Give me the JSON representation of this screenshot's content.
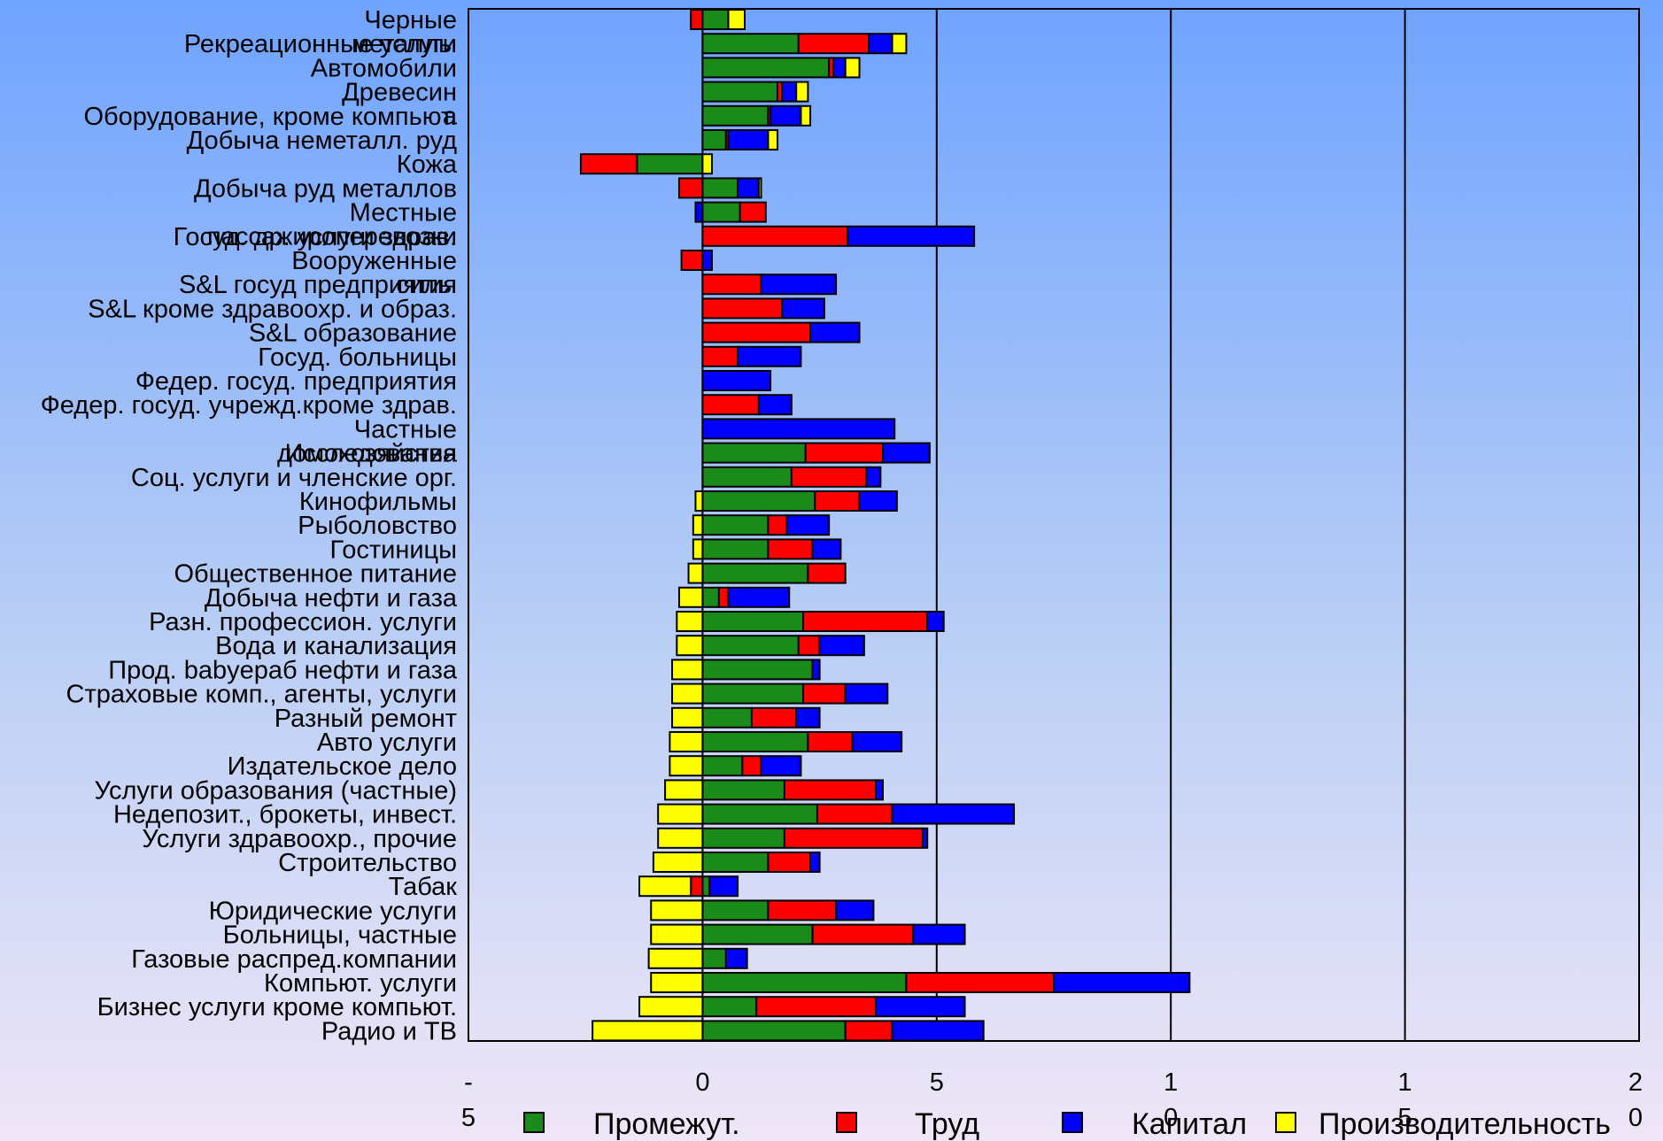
{
  "colors": {
    "intermediate": "#1a8a1a",
    "labor": "#ff0000",
    "capital": "#0000ff",
    "productivity": "#ffff00"
  },
  "chart_data": {
    "type": "bar",
    "orientation": "horizontal",
    "stacked": true,
    "xlim": [
      -5,
      20
    ],
    "x_ticks": [
      {
        "value": -5,
        "line1": "-",
        "line2": "5"
      },
      {
        "value": 0,
        "line1": "0",
        "line2": ""
      },
      {
        "value": 5,
        "line1": "5",
        "line2": ""
      },
      {
        "value": 10,
        "line1": "1",
        "line2": "0"
      },
      {
        "value": 15,
        "line1": "1",
        "line2": "5"
      },
      {
        "value": 20,
        "line1": "2",
        "line2": "0"
      }
    ],
    "grid": "vertical",
    "legend_position": "bottom",
    "series": [
      {
        "key": "intermediate",
        "name": "Промежут.",
        "color": "#1a8a1a"
      },
      {
        "key": "labor",
        "name": "Труд",
        "color": "#ff0000"
      },
      {
        "key": "capital",
        "name": "Капитал",
        "color": "#0000ff"
      },
      {
        "key": "productivity",
        "name": "Производительность",
        "color": "#ffff00"
      }
    ],
    "categories": [
      {
        "label": [
          "Черные",
          "металлы"
        ],
        "intermediate": 0.55,
        "labor": -0.25,
        "capital": 0.0,
        "productivity": 0.35
      },
      {
        "label": [
          "Рекреационные услуги"
        ],
        "intermediate": 2.05,
        "labor": 1.5,
        "capital": 0.5,
        "productivity": 0.3
      },
      {
        "label": [
          "Автомобили"
        ],
        "intermediate": 2.7,
        "labor": 0.1,
        "capital": 0.25,
        "productivity": 0.3
      },
      {
        "label": [
          "Древесин",
          "а"
        ],
        "intermediate": 1.6,
        "labor": 0.1,
        "capital": 0.3,
        "productivity": 0.25
      },
      {
        "label": [
          "Оборудование, кроме компьют."
        ],
        "intermediate": 1.4,
        "labor": 0.05,
        "capital": 0.65,
        "productivity": 0.2
      },
      {
        "label": [
          "Добыча неметалл. руд"
        ],
        "intermediate": 0.5,
        "labor": 0.05,
        "capital": 0.85,
        "productivity": 0.2
      },
      {
        "label": [
          "Кожа"
        ],
        "intermediate": -1.4,
        "labor": -1.2,
        "capital": 0.0,
        "productivity": 0.2
      },
      {
        "label": [
          "Добыча руд металлов"
        ],
        "intermediate": 0.75,
        "labor": -0.5,
        "capital": 0.45,
        "productivity": 0.05
      },
      {
        "label": [
          "Местные",
          "пассажироперевозки"
        ],
        "intermediate": 0.8,
        "labor": 0.55,
        "capital": -0.15,
        "productivity": 0.0
      },
      {
        "label": [
          "Госуд. др. услуги здрав."
        ],
        "intermediate": 0.0,
        "labor": 3.1,
        "capital": 2.7,
        "productivity": 0.0
      },
      {
        "label": [
          "Вооруженные",
          "силы"
        ],
        "intermediate": 0.0,
        "labor": -0.45,
        "capital": 0.2,
        "productivity": 0.0
      },
      {
        "label": [
          "S&L госуд предприятия"
        ],
        "intermediate": 0.0,
        "labor": 1.25,
        "capital": 1.6,
        "productivity": 0.0
      },
      {
        "label": [
          "S&L кроме здравоохр. и образ."
        ],
        "intermediate": 0.0,
        "labor": 1.7,
        "capital": 0.9,
        "productivity": 0.0
      },
      {
        "label": [
          "S&L образование"
        ],
        "intermediate": 0.0,
        "labor": 2.3,
        "capital": 1.05,
        "productivity": 0.0
      },
      {
        "label": [
          "Госуд. больницы"
        ],
        "intermediate": 0.0,
        "labor": 0.75,
        "capital": 1.35,
        "productivity": 0.0
      },
      {
        "label": [
          "Федер. госуд. предприятия"
        ],
        "intermediate": 0.0,
        "labor": 0.0,
        "capital": 1.45,
        "productivity": 0.0
      },
      {
        "label": [
          "Федер. госуд. учрежд.кроме здрав."
        ],
        "intermediate": 0.0,
        "labor": 1.2,
        "capital": 0.7,
        "productivity": 0.0
      },
      {
        "label": [
          "Частные",
          "домохозяйства"
        ],
        "intermediate": 0.0,
        "labor": 0.0,
        "capital": 4.1,
        "productivity": 0.0
      },
      {
        "label": [
          "Исследования"
        ],
        "intermediate": 2.2,
        "labor": 1.65,
        "capital": 1.0,
        "productivity": 0.0
      },
      {
        "label": [
          "Соц. услуги и членские орг."
        ],
        "intermediate": 1.9,
        "labor": 1.6,
        "capital": 0.3,
        "productivity": 0.0
      },
      {
        "label": [
          "Кинофильмы"
        ],
        "intermediate": 2.4,
        "labor": 0.95,
        "capital": 0.8,
        "productivity": -0.15
      },
      {
        "label": [
          "Рыболовство"
        ],
        "intermediate": 1.4,
        "labor": 0.4,
        "capital": 0.9,
        "productivity": -0.2
      },
      {
        "label": [
          "Гостиницы"
        ],
        "intermediate": 1.4,
        "labor": 0.95,
        "capital": 0.6,
        "productivity": -0.2
      },
      {
        "label": [
          "Общественное питание"
        ],
        "intermediate": 2.25,
        "labor": 0.8,
        "capital": 0.0,
        "productivity": -0.3
      },
      {
        "label": [
          "Добыча нефти и газа"
        ],
        "intermediate": 0.35,
        "labor": 0.2,
        "capital": 1.3,
        "productivity": -0.5
      },
      {
        "label": [
          "Разн. профессион. услуги"
        ],
        "intermediate": 2.15,
        "labor": 2.65,
        "capital": 0.35,
        "productivity": -0.55
      },
      {
        "label": [
          "Вода и канализация"
        ],
        "intermediate": 2.05,
        "labor": 0.45,
        "capital": 0.95,
        "productivity": -0.55
      },
      {
        "label": [
          "Прод. babyераб нефти и газа"
        ],
        "intermediate": 2.35,
        "labor": 0.0,
        "capital": 0.15,
        "productivity": -0.65
      },
      {
        "label": [
          "Страховые комп., агенты, услуги"
        ],
        "intermediate": 2.15,
        "labor": 0.9,
        "capital": 0.9,
        "productivity": -0.65
      },
      {
        "label": [
          "Разный ремонт"
        ],
        "intermediate": 1.05,
        "labor": 0.95,
        "capital": 0.5,
        "productivity": -0.65
      },
      {
        "label": [
          "Авто услуги"
        ],
        "intermediate": 2.25,
        "labor": 0.95,
        "capital": 1.05,
        "productivity": -0.7
      },
      {
        "label": [
          "Издательское дело"
        ],
        "intermediate": 0.85,
        "labor": 0.4,
        "capital": 0.85,
        "productivity": -0.7
      },
      {
        "label": [
          "Услуги образования (частные)"
        ],
        "intermediate": 1.75,
        "labor": 1.95,
        "capital": 0.15,
        "productivity": -0.8
      },
      {
        "label": [
          "Недепозит., брокеты, инвест."
        ],
        "intermediate": 2.45,
        "labor": 1.6,
        "capital": 2.6,
        "productivity": -0.95
      },
      {
        "label": [
          "Услуги здравоохр., прочие"
        ],
        "intermediate": 1.75,
        "labor": 2.95,
        "capital": 0.1,
        "productivity": -0.95
      },
      {
        "label": [
          "Строительство"
        ],
        "intermediate": 1.4,
        "labor": 0.9,
        "capital": 0.2,
        "productivity": -1.05
      },
      {
        "label": [
          "Табак"
        ],
        "intermediate": 0.15,
        "labor": -0.25,
        "capital": 0.6,
        "productivity": -1.1
      },
      {
        "label": [
          "Юридические услуги"
        ],
        "intermediate": 1.4,
        "labor": 1.45,
        "capital": 0.8,
        "productivity": -1.1
      },
      {
        "label": [
          "Больницы, частные"
        ],
        "intermediate": 2.35,
        "labor": 2.15,
        "capital": 1.1,
        "productivity": -1.1
      },
      {
        "label": [
          "Газовые распред.компании"
        ],
        "intermediate": 0.5,
        "labor": 0.0,
        "capital": 0.45,
        "productivity": -1.15
      },
      {
        "label": [
          "Компьют. услуги"
        ],
        "intermediate": 4.35,
        "labor": 3.15,
        "capital": 2.9,
        "productivity": -1.1
      },
      {
        "label": [
          "Бизнес услуги кроме компьют."
        ],
        "intermediate": 1.15,
        "labor": 2.55,
        "capital": 1.9,
        "productivity": -1.35
      },
      {
        "label": [
          "Радио и ТВ"
        ],
        "intermediate": 3.05,
        "labor": 1.0,
        "capital": 1.95,
        "productivity": -2.35
      }
    ]
  }
}
